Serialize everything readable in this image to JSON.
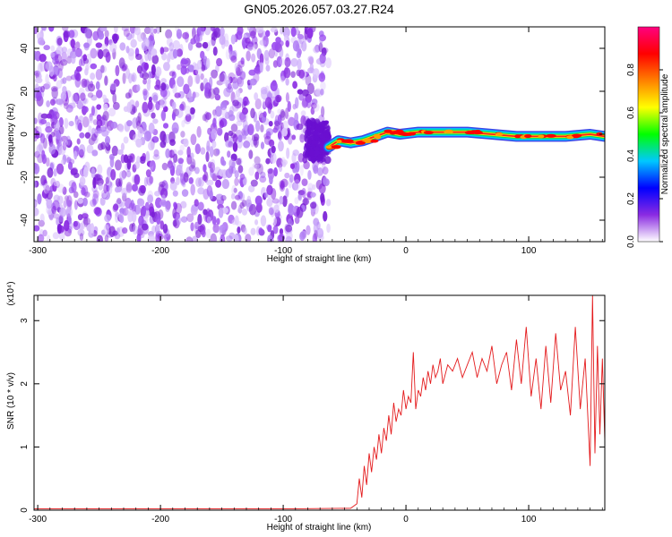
{
  "title": "GN05.2026.057.03.27.R24",
  "colors": {
    "low": "#8a2be2",
    "snr_line": "#e41a1c",
    "frame": "#000000"
  },
  "chart_data": [
    {
      "type": "heatmap",
      "xlabel": "Height of straight line (km)",
      "ylabel": "Frequency (Hz)",
      "xlim": [
        -303,
        162
      ],
      "ylim": [
        -50,
        50
      ],
      "xticks": [
        -300,
        -200,
        -100,
        0,
        100
      ],
      "xtick_labels": [
        "-300",
        "-200",
        "-100",
        "0",
        "100"
      ],
      "yticks": [
        -40,
        -20,
        0,
        20,
        40
      ],
      "ytick_labels": [
        "-40",
        "-20",
        "0",
        "20",
        "40"
      ],
      "noise_region_x": [
        -303,
        -63
      ],
      "signal_track": [
        {
          "x": -63,
          "f": -6
        },
        {
          "x": -55,
          "f": -3
        },
        {
          "x": -45,
          "f": -4
        },
        {
          "x": -35,
          "f": -3
        },
        {
          "x": -25,
          "f": -1
        },
        {
          "x": -15,
          "f": 1
        },
        {
          "x": -5,
          "f": 0
        },
        {
          "x": 10,
          "f": 1
        },
        {
          "x": 30,
          "f": 1
        },
        {
          "x": 50,
          "f": 1
        },
        {
          "x": 70,
          "f": 0
        },
        {
          "x": 90,
          "f": -1
        },
        {
          "x": 110,
          "f": -1
        },
        {
          "x": 130,
          "f": -1
        },
        {
          "x": 150,
          "f": 0
        },
        {
          "x": 162,
          "f": -1
        }
      ],
      "colorbar": {
        "label": "Normalized spectral amplitude",
        "range": [
          0,
          1
        ],
        "ticks": [
          0.0,
          0.2,
          0.4,
          0.6,
          0.8
        ],
        "tick_labels": [
          "0.0",
          "0.2",
          "0.4",
          "0.6",
          "0.8"
        ],
        "colors": [
          "#ffffff",
          "#8a2be2",
          "#0000ff",
          "#00c8ff",
          "#00ff00",
          "#ffff00",
          "#ff8000",
          "#ff0000",
          "#ff0080"
        ]
      }
    },
    {
      "type": "line",
      "xlabel": "Height of straight line (km)",
      "ylabel": "SNR (10 * v/v)",
      "yscale_label": "(x10⁴)",
      "xlim": [
        -303,
        162
      ],
      "ylim": [
        0,
        3.4
      ],
      "xticks": [
        -300,
        -200,
        -100,
        0,
        100
      ],
      "xtick_labels": [
        "-300",
        "-200",
        "-100",
        "0",
        "100"
      ],
      "yticks": [
        0,
        1,
        2,
        3
      ],
      "ytick_labels": [
        "0",
        "1",
        "2",
        "3"
      ],
      "series": [
        {
          "color": "#e41a1c",
          "x": [
            -303,
            -200,
            -100,
            -45,
            -40,
            -38,
            -36,
            -34,
            -32,
            -30,
            -28,
            -26,
            -24,
            -22,
            -20,
            -18,
            -16,
            -14,
            -12,
            -10,
            -8,
            -6,
            -4,
            -2,
            0,
            2,
            4,
            6,
            8,
            10,
            12,
            14,
            16,
            18,
            20,
            22,
            24,
            26,
            28,
            30,
            34,
            38,
            42,
            46,
            50,
            54,
            58,
            62,
            66,
            70,
            74,
            78,
            82,
            86,
            90,
            94,
            98,
            102,
            106,
            110,
            114,
            118,
            122,
            126,
            130,
            134,
            138,
            142,
            146,
            150,
            152,
            154,
            156,
            158,
            160,
            162
          ],
          "values": [
            0.02,
            0.02,
            0.02,
            0.03,
            0.1,
            0.5,
            0.2,
            0.7,
            0.4,
            0.9,
            0.6,
            1.0,
            0.8,
            1.2,
            0.9,
            1.3,
            1.1,
            1.5,
            1.2,
            1.7,
            1.4,
            1.6,
            1.5,
            1.9,
            1.6,
            1.8,
            1.7,
            2.5,
            1.6,
            1.9,
            1.8,
            2.1,
            1.9,
            2.2,
            2.0,
            2.3,
            2.1,
            2.2,
            2.4,
            2.0,
            2.3,
            2.2,
            2.4,
            2.1,
            2.3,
            2.5,
            2.1,
            2.4,
            2.2,
            2.6,
            2.0,
            2.3,
            2.5,
            1.9,
            2.7,
            2.0,
            2.9,
            1.8,
            2.4,
            1.6,
            2.6,
            1.7,
            2.8,
            1.9,
            2.2,
            1.5,
            2.9,
            1.6,
            2.4,
            0.7,
            3.4,
            0.9,
            2.6,
            1.2,
            2.4,
            1.1
          ]
        }
      ]
    }
  ]
}
